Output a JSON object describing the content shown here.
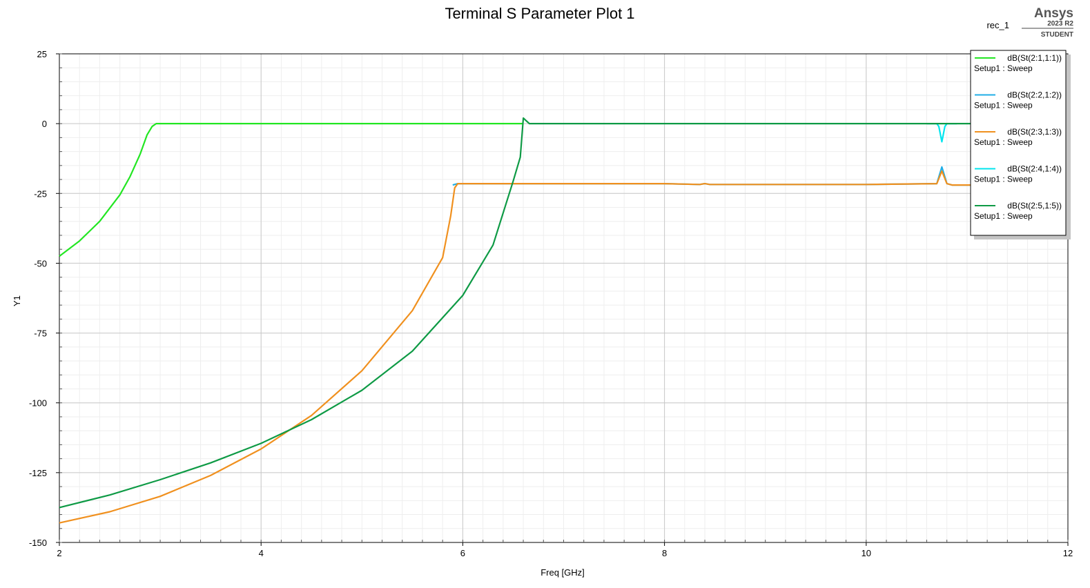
{
  "chart_data": {
    "type": "line",
    "title": "Terminal S Parameter Plot 1",
    "subtitle": "rec_1",
    "branding": {
      "name": "Ansys",
      "version": "2023 R2",
      "edition": "STUDENT"
    },
    "xlabel": "Freq [GHz]",
    "ylabel": "Y1",
    "xlim": [
      2,
      12
    ],
    "ylim": [
      -150,
      25
    ],
    "x_ticks": [
      2,
      4,
      6,
      8,
      10,
      12
    ],
    "y_ticks": [
      25,
      0,
      -25,
      -50,
      -75,
      -100,
      -125,
      -150
    ],
    "grid": true,
    "legend_position": "top-right",
    "series": [
      {
        "name": "dB(St(2:1,1:1))",
        "sub": "Setup1 : Sweep",
        "color": "#22e622",
        "x": [
          2.0,
          2.2,
          2.4,
          2.6,
          2.7,
          2.8,
          2.87,
          2.92,
          2.96,
          3.0,
          4.0,
          5.0,
          6.0,
          6.5,
          6.59,
          6.6
        ],
        "y": [
          -47.5,
          -42,
          -35,
          -25.5,
          -19,
          -11,
          -4,
          -1,
          0,
          0,
          0,
          0,
          0,
          0,
          0,
          0
        ]
      },
      {
        "name": "dB(St(2:2,1:2))",
        "sub": "Setup1 : Sweep",
        "color": "#1faee6",
        "x": [
          5.9,
          5.95,
          6.5,
          7.0,
          8.0,
          8.35,
          8.4,
          8.45,
          9.0,
          10.0,
          10.7,
          10.75,
          10.8,
          10.85,
          11.0,
          12.0
        ],
        "y": [
          -22,
          -21.5,
          -21.5,
          -21.5,
          -21.5,
          -21.8,
          -21.5,
          -21.8,
          -21.8,
          -21.8,
          -21.5,
          -15.5,
          -21.5,
          -22,
          -22,
          -22
        ]
      },
      {
        "name": "dB(St(2:3,1:3))",
        "sub": "Setup1 : Sweep",
        "color": "#f0901e",
        "x": [
          2.0,
          2.5,
          3.0,
          3.5,
          4.0,
          4.5,
          5.0,
          5.5,
          5.8,
          5.88,
          5.92,
          5.95,
          7.0,
          8.0,
          8.35,
          8.4,
          8.45,
          9.0,
          10.0,
          10.7,
          10.75,
          10.8,
          10.85,
          11.0,
          12.0
        ],
        "y": [
          -143,
          -139,
          -133.5,
          -126,
          -116.5,
          -104.5,
          -88.5,
          -67,
          -48,
          -33,
          -23,
          -21.5,
          -21.5,
          -21.5,
          -21.8,
          -21.5,
          -21.8,
          -21.8,
          -21.8,
          -21.5,
          -17,
          -21.5,
          -22,
          -22,
          -22
        ]
      },
      {
        "name": "dB(St(2:4,1:4))",
        "sub": "Setup1 : Sweep",
        "color": "#00e5ee",
        "x": [
          10.6,
          10.7,
          10.72,
          10.75,
          10.78,
          10.8,
          10.9
        ],
        "y": [
          0,
          0,
          -1,
          -6.5,
          -1,
          0,
          0
        ]
      },
      {
        "name": "dB(St(2:5,1:5))",
        "sub": "Setup1 : Sweep",
        "color": "#0e9a45",
        "x": [
          2.0,
          2.5,
          3.0,
          3.5,
          4.0,
          4.5,
          5.0,
          5.5,
          6.0,
          6.3,
          6.5,
          6.57,
          6.6,
          6.63,
          6.66,
          7.0,
          8.0,
          9.0,
          10.0,
          11.0,
          12.0
        ],
        "y": [
          -137.5,
          -133,
          -127.5,
          -121.5,
          -114.5,
          -106,
          -95.5,
          -81.5,
          -61.5,
          -43.5,
          -20.5,
          -12,
          2,
          1,
          0,
          0,
          0,
          0,
          0,
          0,
          0
        ]
      }
    ]
  }
}
